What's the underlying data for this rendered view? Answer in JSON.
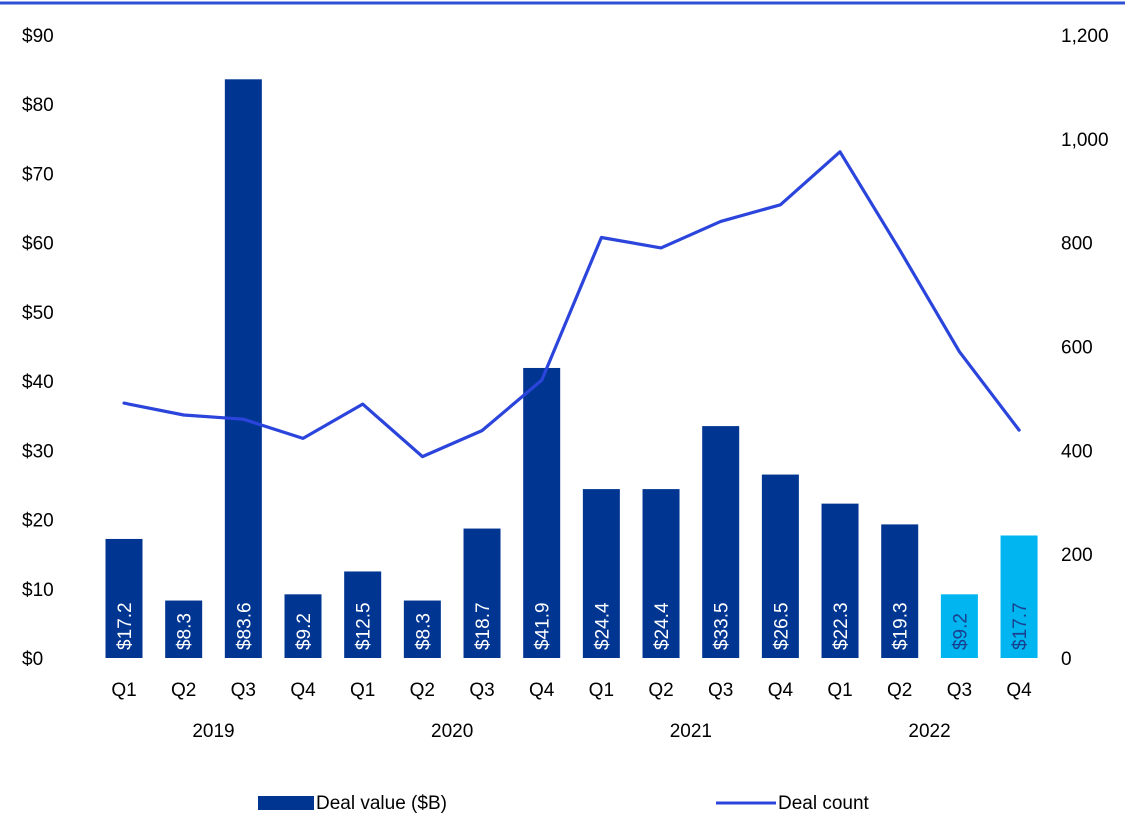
{
  "colors": {
    "top_rule": "#2e4fd6",
    "bar_primary": "#003591",
    "bar_highlight": "#00b5f0",
    "line": "#2b45dc",
    "label_on_primary": "#ffffff",
    "label_on_highlight": "#1a3f8f"
  },
  "chart_data": {
    "type": "bar",
    "categories": [
      "Q1",
      "Q2",
      "Q3",
      "Q4",
      "Q1",
      "Q2",
      "Q3",
      "Q4",
      "Q1",
      "Q2",
      "Q3",
      "Q4",
      "Q1",
      "Q2",
      "Q3",
      "Q4"
    ],
    "years": [
      "2019",
      "2020",
      "2021",
      "2022"
    ],
    "series": [
      {
        "name": "Deal value ($B)",
        "type": "bar",
        "axis": "left",
        "values": [
          17.2,
          8.3,
          83.6,
          9.2,
          12.5,
          8.3,
          18.7,
          41.9,
          24.4,
          24.4,
          33.5,
          26.5,
          22.3,
          19.3,
          9.2,
          17.7
        ],
        "labels": [
          "$17.2",
          "$8.3",
          "$83.6",
          "$9.2",
          "$12.5",
          "$8.3",
          "$18.7",
          "$41.9",
          "$24.4",
          "$24.4",
          "$33.5",
          "$26.5",
          "$22.3",
          "$19.3",
          "$9.2",
          "$17.7"
        ],
        "highlighted": [
          false,
          false,
          false,
          false,
          false,
          false,
          false,
          false,
          false,
          false,
          false,
          false,
          false,
          false,
          true,
          true
        ]
      },
      {
        "name": "Deal count",
        "type": "line",
        "axis": "right",
        "values": [
          491,
          468,
          460,
          423,
          489,
          388,
          438,
          535,
          810,
          790,
          841,
          873,
          975,
          786,
          590,
          439
        ]
      }
    ],
    "y_left": {
      "lim": [
        0,
        90
      ],
      "ticks": [
        0,
        10,
        20,
        30,
        40,
        50,
        60,
        70,
        80,
        90
      ],
      "tick_labels": [
        "$0",
        "$10",
        "$20",
        "$30",
        "$40",
        "$50",
        "$60",
        "$70",
        "$80",
        "$90"
      ]
    },
    "y_right": {
      "lim": [
        0,
        1200
      ],
      "ticks": [
        0,
        200,
        400,
        600,
        800,
        1000,
        1200
      ],
      "tick_labels": [
        "0",
        "200",
        "400",
        "600",
        "800",
        "1,000",
        "1,200"
      ]
    },
    "grid": false,
    "legend_position": "bottom"
  },
  "legend": {
    "bar_label": "Deal value ($B)",
    "line_label": "Deal count"
  }
}
